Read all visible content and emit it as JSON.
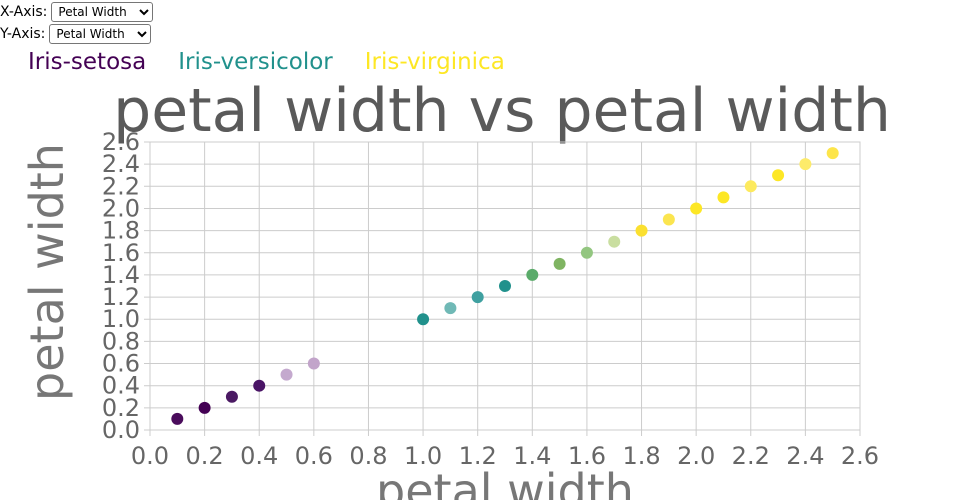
{
  "controls": {
    "x_label": "X-Axis:",
    "y_label": "Y-Axis:",
    "x_selected": "Petal Width",
    "y_selected": "Petal Width"
  },
  "legend": [
    {
      "label": "Iris-setosa",
      "color": "#440154"
    },
    {
      "label": "Iris-versicolor",
      "color": "#21918c"
    },
    {
      "label": "Iris-virginica",
      "color": "#fde725"
    }
  ],
  "chart_data": {
    "type": "scatter",
    "title": "petal width vs petal width",
    "xlabel": "petal width",
    "ylabel": "petal width",
    "xlim": [
      0,
      2.6
    ],
    "ylim": [
      0,
      2.6
    ],
    "grid": true,
    "xticks": [
      "0.0",
      "0.2",
      "0.4",
      "0.6",
      "0.8",
      "1.0",
      "1.2",
      "1.4",
      "1.6",
      "1.8",
      "2.0",
      "2.2",
      "2.4",
      "2.6"
    ],
    "yticks": [
      "0.0",
      "0.2",
      "0.4",
      "0.6",
      "0.8",
      "1.0",
      "1.2",
      "1.4",
      "1.6",
      "1.8",
      "2.0",
      "2.2",
      "2.4",
      "2.6"
    ],
    "points": [
      {
        "x": 0.1,
        "y": 0.1,
        "color": "#4a0c5c"
      },
      {
        "x": 0.2,
        "y": 0.2,
        "color": "#440154"
      },
      {
        "x": 0.3,
        "y": 0.3,
        "color": "#4b1a63"
      },
      {
        "x": 0.4,
        "y": 0.4,
        "color": "#4a1466"
      },
      {
        "x": 0.5,
        "y": 0.5,
        "color": "#c4a9ce"
      },
      {
        "x": 0.6,
        "y": 0.6,
        "color": "#c2a4ca"
      },
      {
        "x": 1.0,
        "y": 1.0,
        "color": "#21918c"
      },
      {
        "x": 1.1,
        "y": 1.1,
        "color": "#70b9b6"
      },
      {
        "x": 1.2,
        "y": 1.2,
        "color": "#3fa0a0"
      },
      {
        "x": 1.3,
        "y": 1.3,
        "color": "#21918c"
      },
      {
        "x": 1.4,
        "y": 1.4,
        "color": "#5aab6a"
      },
      {
        "x": 1.5,
        "y": 1.5,
        "color": "#7fb462"
      },
      {
        "x": 1.6,
        "y": 1.6,
        "color": "#93c680"
      },
      {
        "x": 1.7,
        "y": 1.7,
        "color": "#c9dea0"
      },
      {
        "x": 1.8,
        "y": 1.8,
        "color": "#fbe030"
      },
      {
        "x": 1.9,
        "y": 1.9,
        "color": "#fbe54f"
      },
      {
        "x": 2.0,
        "y": 2.0,
        "color": "#fde725"
      },
      {
        "x": 2.1,
        "y": 2.1,
        "color": "#fde725"
      },
      {
        "x": 2.2,
        "y": 2.2,
        "color": "#fdea5e"
      },
      {
        "x": 2.3,
        "y": 2.3,
        "color": "#fde725"
      },
      {
        "x": 2.4,
        "y": 2.4,
        "color": "#fdeb6a"
      },
      {
        "x": 2.5,
        "y": 2.5,
        "color": "#fde54a"
      }
    ]
  }
}
